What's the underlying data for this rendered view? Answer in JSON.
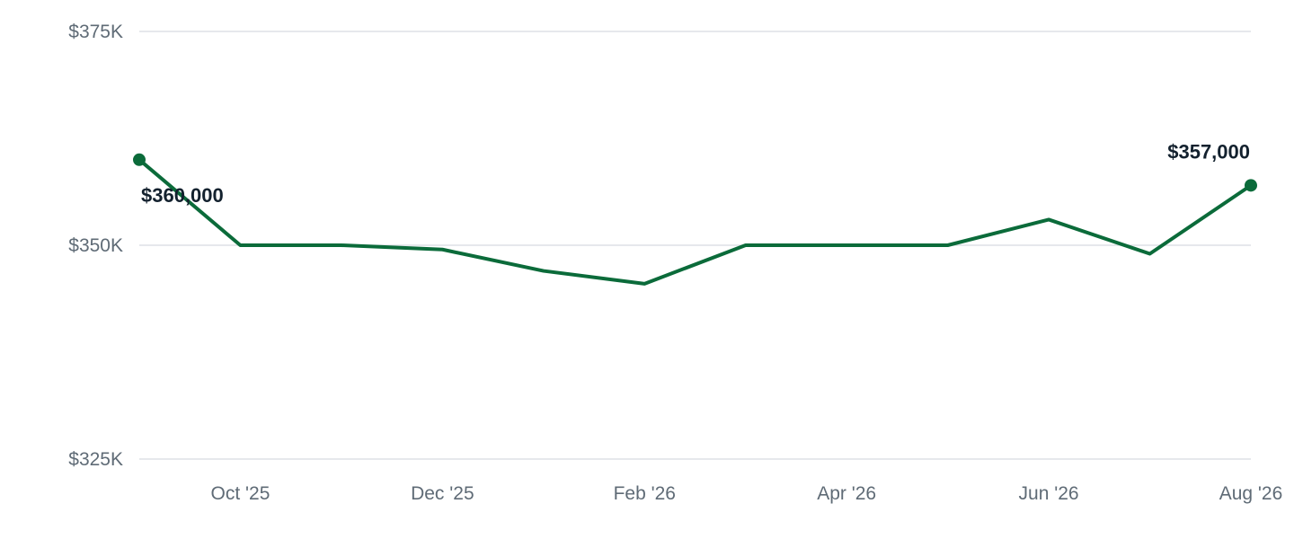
{
  "chart_data": {
    "type": "line",
    "title": "",
    "xlabel": "",
    "ylabel": "",
    "ylim": [
      325000,
      375000
    ],
    "grid": "horizontal",
    "legend": "none",
    "x": [
      "2025-09",
      "2025-10",
      "2025-11",
      "2025-12",
      "2026-01",
      "2026-02",
      "2026-03",
      "2026-04",
      "2026-05",
      "2026-06",
      "2026-07",
      "2026-08"
    ],
    "series": [
      {
        "values": [
          360000,
          350000,
          350000,
          349500,
          347000,
          345500,
          350000,
          350000,
          350000,
          353000,
          349000,
          357000
        ],
        "color": "#0b6b3a"
      }
    ],
    "y_ticks": [
      {
        "value": 375000,
        "label": "$375K"
      },
      {
        "value": 350000,
        "label": "$350K"
      },
      {
        "value": 325000,
        "label": "$325K"
      }
    ],
    "x_ticks": [
      {
        "index": 1,
        "label": "Oct '25"
      },
      {
        "index": 3,
        "label": "Dec '25"
      },
      {
        "index": 5,
        "label": "Feb '26"
      },
      {
        "index": 7,
        "label": "Apr '26"
      },
      {
        "index": 9,
        "label": "Jun '26"
      },
      {
        "index": 11,
        "label": "Aug '26"
      }
    ],
    "annotations": [
      {
        "index": 0,
        "label": "$360,000"
      },
      {
        "index": 11,
        "label": "$357,000"
      }
    ]
  }
}
